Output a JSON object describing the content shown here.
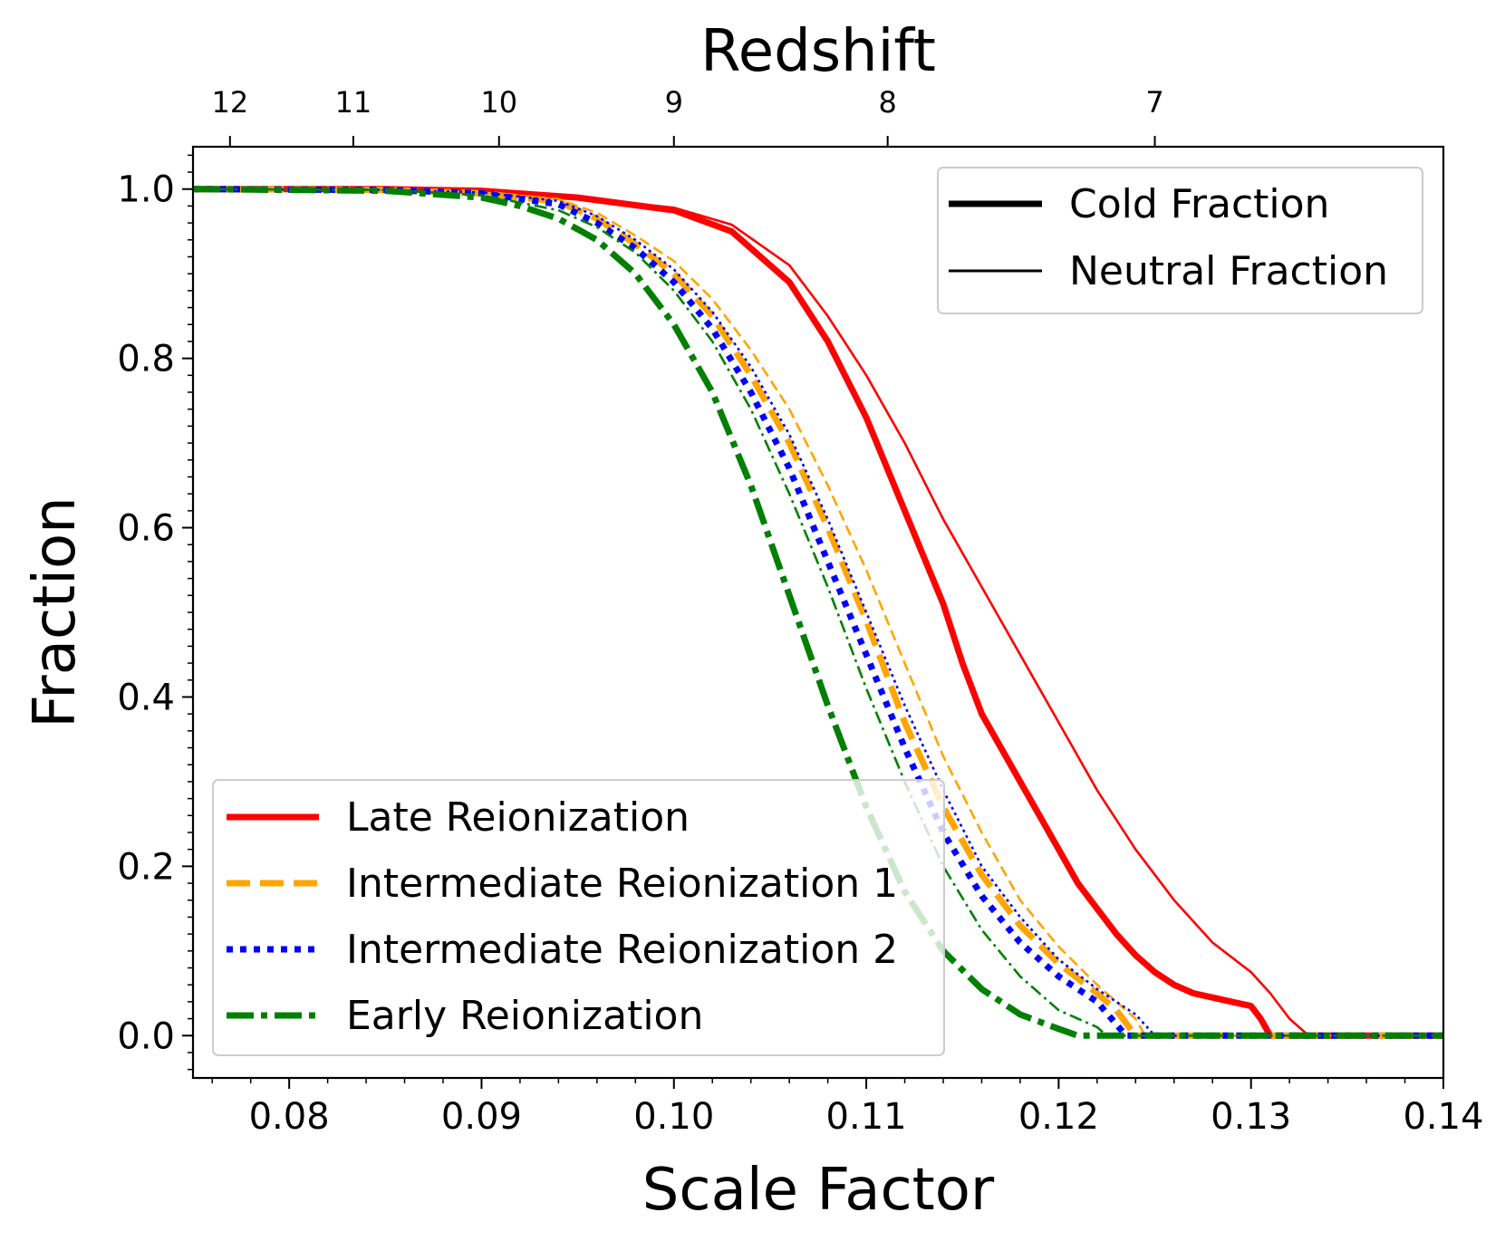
{
  "chart_data": {
    "type": "line",
    "title": "",
    "xlabel": "Scale Factor",
    "ylabel": "Fraction",
    "top_xlabel": "Redshift",
    "xlim": [
      0.075,
      0.14
    ],
    "ylim": [
      -0.05,
      1.05
    ],
    "x_ticks": [
      0.08,
      0.09,
      0.1,
      0.11,
      0.12,
      0.13,
      0.14
    ],
    "x_tick_labels": [
      "0.08",
      "0.09",
      "0.10",
      "0.11",
      "0.12",
      "0.13",
      "0.14"
    ],
    "y_ticks": [
      0.0,
      0.2,
      0.4,
      0.6,
      0.8,
      1.0
    ],
    "y_tick_labels": [
      "0.0",
      "0.2",
      "0.4",
      "0.6",
      "0.8",
      "1.0"
    ],
    "top_ticks": [
      12,
      11,
      10,
      9,
      8,
      7
    ],
    "top_tick_labels": [
      "12",
      "11",
      "10",
      "9",
      "8",
      "7"
    ],
    "legend_styles": {
      "position": "top-right",
      "entries": [
        {
          "label": "Cold Fraction",
          "style": "thick"
        },
        {
          "label": "Neutral Fraction",
          "style": "thin"
        }
      ]
    },
    "legend_models": {
      "position": "bottom-left",
      "entries": [
        {
          "label": "Late Reionization",
          "color": "#ff0000",
          "dash": "solid"
        },
        {
          "label": "Intermediate Reionization 1",
          "color": "#ffa500",
          "dash": "dashed"
        },
        {
          "label": "Intermediate Reionization 2",
          "color": "#0000ff",
          "dash": "dotted"
        },
        {
          "label": "Early Reionization",
          "color": "#008000",
          "dash": "dashdot"
        }
      ]
    },
    "series": [
      {
        "name": "Late Reionization",
        "kind": "Cold Fraction",
        "color": "#ff0000",
        "dash": "solid",
        "x": [
          0.075,
          0.085,
          0.09,
          0.095,
          0.1,
          0.103,
          0.106,
          0.108,
          0.11,
          0.112,
          0.114,
          0.115,
          0.116,
          0.117,
          0.118,
          0.119,
          0.12,
          0.121,
          0.122,
          0.123,
          0.124,
          0.125,
          0.126,
          0.127,
          0.128,
          0.129,
          0.13,
          0.1305,
          0.131,
          0.14
        ],
        "y": [
          1.0,
          1.0,
          0.998,
          0.99,
          0.975,
          0.95,
          0.89,
          0.82,
          0.73,
          0.62,
          0.51,
          0.44,
          0.38,
          0.34,
          0.3,
          0.26,
          0.22,
          0.18,
          0.15,
          0.12,
          0.095,
          0.075,
          0.06,
          0.05,
          0.045,
          0.04,
          0.035,
          0.02,
          0.0,
          0.0
        ]
      },
      {
        "name": "Late Reionization",
        "kind": "Neutral Fraction",
        "color": "#ff0000",
        "dash": "solid",
        "x": [
          0.075,
          0.085,
          0.09,
          0.095,
          0.1,
          0.103,
          0.106,
          0.108,
          0.11,
          0.112,
          0.114,
          0.116,
          0.118,
          0.12,
          0.122,
          0.124,
          0.126,
          0.128,
          0.13,
          0.131,
          0.132,
          0.133,
          0.14
        ],
        "y": [
          1.0,
          1.0,
          0.998,
          0.99,
          0.978,
          0.958,
          0.91,
          0.85,
          0.78,
          0.7,
          0.61,
          0.53,
          0.45,
          0.37,
          0.29,
          0.22,
          0.16,
          0.11,
          0.075,
          0.05,
          0.02,
          0.0,
          0.0
        ]
      },
      {
        "name": "Intermediate Reionization 1",
        "kind": "Cold Fraction",
        "color": "#ffa500",
        "dash": "dashed",
        "x": [
          0.075,
          0.085,
          0.09,
          0.094,
          0.096,
          0.098,
          0.1,
          0.102,
          0.104,
          0.106,
          0.108,
          0.11,
          0.112,
          0.114,
          0.116,
          0.118,
          0.12,
          0.122,
          0.123,
          0.124,
          0.14
        ],
        "y": [
          1.0,
          0.999,
          0.995,
          0.985,
          0.965,
          0.935,
          0.9,
          0.85,
          0.78,
          0.7,
          0.6,
          0.49,
          0.37,
          0.27,
          0.19,
          0.13,
          0.085,
          0.05,
          0.03,
          0.0,
          0.0
        ]
      },
      {
        "name": "Intermediate Reionization 1",
        "kind": "Neutral Fraction",
        "color": "#ffa500",
        "dash": "dashed",
        "x": [
          0.075,
          0.085,
          0.09,
          0.094,
          0.096,
          0.098,
          0.1,
          0.102,
          0.104,
          0.106,
          0.108,
          0.11,
          0.112,
          0.114,
          0.116,
          0.118,
          0.12,
          0.122,
          0.124,
          0.1245,
          0.14
        ],
        "y": [
          1.0,
          0.999,
          0.996,
          0.988,
          0.972,
          0.945,
          0.915,
          0.87,
          0.81,
          0.74,
          0.65,
          0.55,
          0.44,
          0.33,
          0.24,
          0.16,
          0.105,
          0.06,
          0.02,
          0.0,
          0.0
        ]
      },
      {
        "name": "Intermediate Reionization 2",
        "kind": "Cold Fraction",
        "color": "#0000ff",
        "dash": "dotted",
        "x": [
          0.075,
          0.085,
          0.09,
          0.094,
          0.096,
          0.098,
          0.1,
          0.102,
          0.104,
          0.106,
          0.108,
          0.11,
          0.112,
          0.114,
          0.116,
          0.118,
          0.12,
          0.122,
          0.1235,
          0.14
        ],
        "y": [
          1.0,
          0.999,
          0.995,
          0.982,
          0.96,
          0.93,
          0.89,
          0.835,
          0.76,
          0.67,
          0.56,
          0.45,
          0.34,
          0.24,
          0.165,
          0.11,
          0.07,
          0.04,
          0.0,
          0.0
        ]
      },
      {
        "name": "Intermediate Reionization 2",
        "kind": "Neutral Fraction",
        "color": "#0000ff",
        "dash": "dotted",
        "x": [
          0.075,
          0.085,
          0.09,
          0.094,
          0.096,
          0.098,
          0.1,
          0.102,
          0.104,
          0.106,
          0.108,
          0.11,
          0.112,
          0.114,
          0.116,
          0.118,
          0.12,
          0.122,
          0.124,
          0.125,
          0.14
        ],
        "y": [
          1.0,
          0.999,
          0.996,
          0.986,
          0.968,
          0.94,
          0.905,
          0.855,
          0.79,
          0.71,
          0.61,
          0.5,
          0.39,
          0.29,
          0.2,
          0.14,
          0.09,
          0.055,
          0.025,
          0.0,
          0.0
        ]
      },
      {
        "name": "Early Reionization",
        "kind": "Cold Fraction",
        "color": "#008000",
        "dash": "dashdot",
        "x": [
          0.075,
          0.085,
          0.09,
          0.092,
          0.094,
          0.096,
          0.098,
          0.1,
          0.102,
          0.104,
          0.106,
          0.108,
          0.11,
          0.112,
          0.114,
          0.116,
          0.118,
          0.12,
          0.121,
          0.14
        ],
        "y": [
          1.0,
          0.998,
          0.99,
          0.98,
          0.965,
          0.94,
          0.9,
          0.84,
          0.76,
          0.65,
          0.52,
          0.39,
          0.27,
          0.17,
          0.1,
          0.055,
          0.025,
          0.008,
          0.0,
          0.0
        ]
      },
      {
        "name": "Early Reionization",
        "kind": "Neutral Fraction",
        "color": "#008000",
        "dash": "dashdot",
        "x": [
          0.075,
          0.085,
          0.09,
          0.094,
          0.096,
          0.098,
          0.1,
          0.102,
          0.104,
          0.106,
          0.108,
          0.11,
          0.112,
          0.114,
          0.116,
          0.118,
          0.12,
          0.122,
          0.1225,
          0.14
        ],
        "y": [
          1.0,
          0.999,
          0.993,
          0.975,
          0.955,
          0.925,
          0.88,
          0.82,
          0.74,
          0.64,
          0.53,
          0.41,
          0.3,
          0.2,
          0.125,
          0.07,
          0.03,
          0.01,
          0.0,
          0.0
        ]
      }
    ]
  }
}
